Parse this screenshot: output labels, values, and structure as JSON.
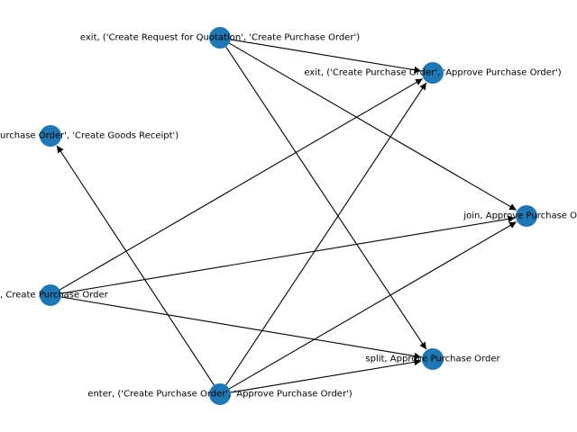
{
  "graph": {
    "node_color": "#1f77b4",
    "edge_color": "#000000",
    "nodes": [
      {
        "id": "exit_rfq_po",
        "label": "exit, ('Create Request for Quotation', 'Create Purchase Order')"
      },
      {
        "id": "exit_po_approve",
        "label": "exit, ('Create Purchase Order', 'Approve Purchase Order')"
      },
      {
        "id": "po_goods_receipt",
        "label": "urchase Order', 'Create Goods Receipt')"
      },
      {
        "id": "join_approve",
        "label": "join, Approve Purchase O"
      },
      {
        "id": "create_po",
        "label": ", Create Purchase Order"
      },
      {
        "id": "split_approve",
        "label": "split, Approve Purchase Order"
      },
      {
        "id": "enter_po_approve",
        "label": "enter, ('Create Purchase Order', 'Approve Purchase Order')"
      }
    ],
    "edges": [
      {
        "from": "exit_rfq_po",
        "to": "exit_po_approve"
      },
      {
        "from": "exit_rfq_po",
        "to": "join_approve"
      },
      {
        "from": "exit_rfq_po",
        "to": "split_approve"
      },
      {
        "from": "create_po",
        "to": "exit_po_approve"
      },
      {
        "from": "create_po",
        "to": "join_approve"
      },
      {
        "from": "create_po",
        "to": "split_approve"
      },
      {
        "from": "enter_po_approve",
        "to": "po_goods_receipt"
      },
      {
        "from": "enter_po_approve",
        "to": "exit_po_approve"
      },
      {
        "from": "enter_po_approve",
        "to": "join_approve"
      },
      {
        "from": "enter_po_approve",
        "to": "split_approve"
      }
    ]
  }
}
